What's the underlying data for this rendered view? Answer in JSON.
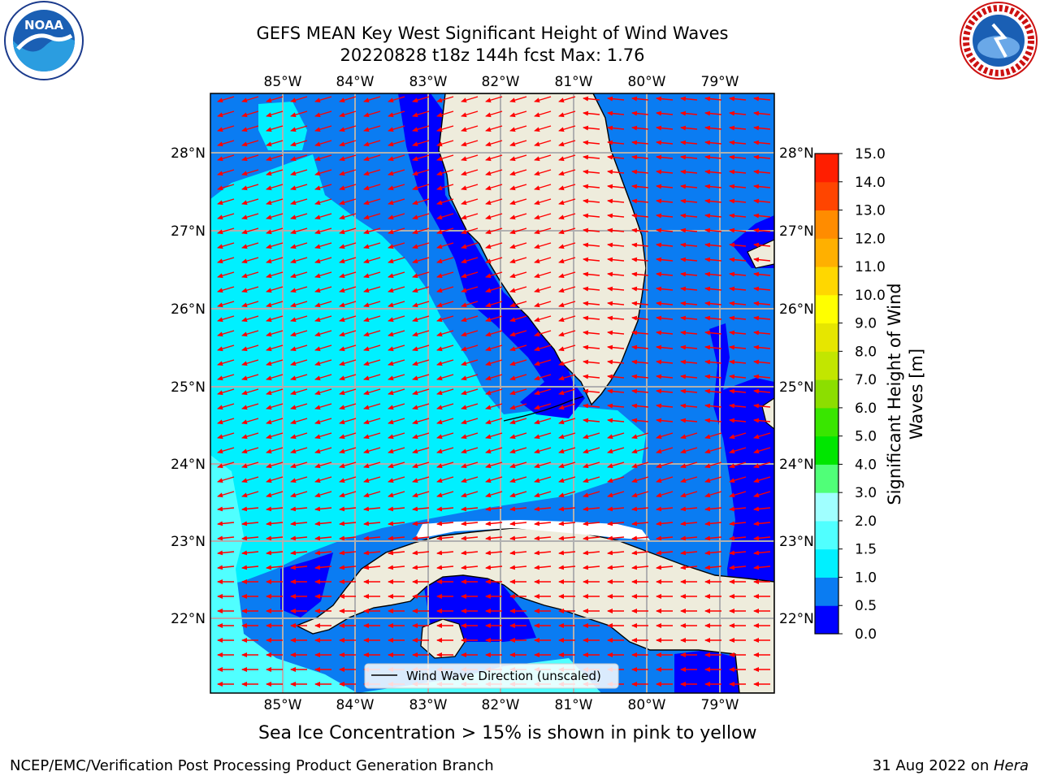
{
  "header": {
    "title_line1": "GEFS MEAN Key West Significant Height of Wind Waves",
    "title_line2": "20220828 t18z 144h fcst   Max: 1.76"
  },
  "map": {
    "lon_labels": [
      "85°W",
      "84°W",
      "83°W",
      "82°W",
      "81°W",
      "80°W",
      "79°W"
    ],
    "lat_labels": [
      "28°N",
      "27°N",
      "26°N",
      "25°N",
      "24°N",
      "23°N",
      "22°N"
    ],
    "legend_label": "Wind Wave Direction (unscaled)",
    "arrow_color": "#ff0000",
    "land_color": "#eeecdc"
  },
  "colorbar": {
    "label": "Significant Height of Wind Waves [m]",
    "ticks": [
      "0.0",
      "0.5",
      "1.0",
      "1.5",
      "2.0",
      "3.0",
      "4.0",
      "5.0",
      "6.0",
      "7.0",
      "8.0",
      "9.0",
      "10.0",
      "11.0",
      "12.0",
      "13.0",
      "14.0",
      "15.0"
    ],
    "colors": [
      "#0000ff",
      "#0a7cf2",
      "#00f0ff",
      "#50ffff",
      "#a0ffff",
      "#50ff78",
      "#00e600",
      "#39e600",
      "#8cde00",
      "#c2e600",
      "#e6e600",
      "#ffff00",
      "#ffd700",
      "#ffb000",
      "#ff8c00",
      "#ff4500",
      "#ff1e00"
    ]
  },
  "footer": {
    "sea_ice_note": "Sea Ice Concentration > 15% is shown in pink to yellow",
    "credit": "NCEP/EMC/Verification Post Processing Product Generation Branch",
    "date": "31 Aug 2022 on ",
    "host": "Hera"
  },
  "logos": {
    "noaa_text": "NOAA",
    "nws_text": "NATIONAL WEATHER SERVICE"
  }
}
